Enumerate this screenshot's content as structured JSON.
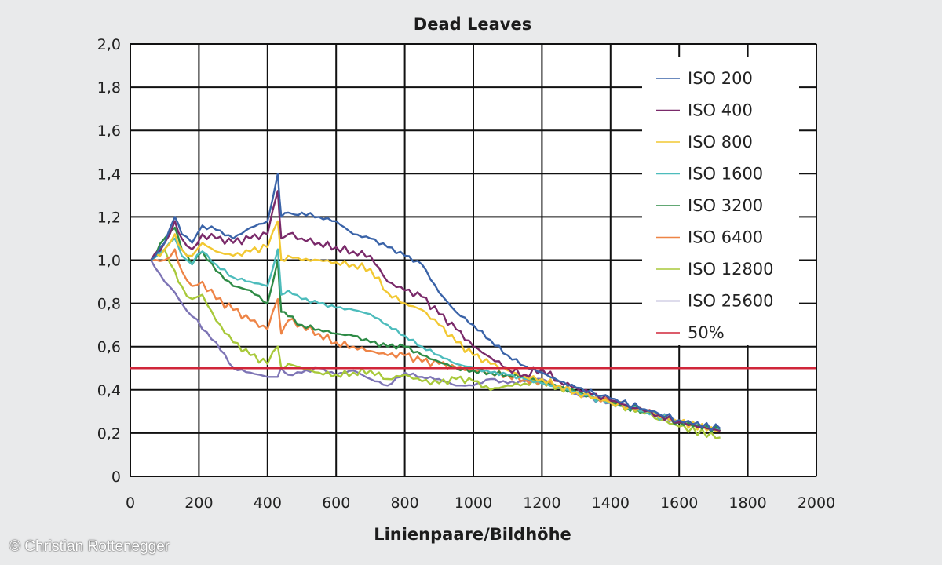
{
  "credit": "© Christian Rottenegger",
  "chart_data": {
    "type": "line",
    "title": "Dead Leaves",
    "xlabel": "Linienpaare/Bildhöhe",
    "ylabel": "",
    "xlim": [
      0,
      2000
    ],
    "ylim": [
      0,
      2.0
    ],
    "x_ticks": [
      "0",
      "200",
      "400",
      "600",
      "800",
      "1000",
      "1200",
      "1400",
      "1600",
      "1800",
      "2000"
    ],
    "y_ticks": [
      "0",
      "0,2",
      "0,4",
      "0,6",
      "0,8",
      "1,0",
      "1,2",
      "1,4",
      "1,6",
      "1,8",
      "2,0"
    ],
    "grid": true,
    "legend_position": "top-right",
    "series": [
      {
        "name": "ISO 200",
        "color": "#3a63a8",
        "x": [
          60,
          100,
          130,
          150,
          180,
          210,
          250,
          300,
          350,
          400,
          430,
          440,
          460,
          480,
          500,
          550,
          600,
          650,
          700,
          750,
          800,
          850,
          900,
          950,
          1000,
          1050,
          1100,
          1150,
          1200,
          1250,
          1300,
          1400,
          1500,
          1600,
          1720
        ],
        "y": [
          1.0,
          1.08,
          1.2,
          1.12,
          1.08,
          1.16,
          1.14,
          1.1,
          1.15,
          1.18,
          1.4,
          1.2,
          1.22,
          1.21,
          1.22,
          1.2,
          1.18,
          1.12,
          1.1,
          1.06,
          1.02,
          0.98,
          0.85,
          0.76,
          0.7,
          0.63,
          0.56,
          0.51,
          0.48,
          0.44,
          0.41,
          0.36,
          0.31,
          0.26,
          0.22
        ]
      },
      {
        "name": "ISO 400",
        "color": "#7a2a6a",
        "x": [
          60,
          100,
          130,
          150,
          180,
          210,
          250,
          300,
          350,
          400,
          430,
          440,
          460,
          500,
          550,
          600,
          650,
          700,
          750,
          800,
          850,
          900,
          950,
          1000,
          1050,
          1100,
          1150,
          1200,
          1250,
          1300,
          1400,
          1500,
          1600,
          1720
        ],
        "y": [
          1.0,
          1.08,
          1.18,
          1.1,
          1.05,
          1.12,
          1.1,
          1.08,
          1.1,
          1.12,
          1.32,
          1.1,
          1.12,
          1.1,
          1.08,
          1.06,
          1.04,
          1.02,
          0.9,
          0.86,
          0.83,
          0.75,
          0.68,
          0.6,
          0.55,
          0.5,
          0.47,
          0.5,
          0.44,
          0.41,
          0.35,
          0.3,
          0.25,
          0.21
        ]
      },
      {
        "name": "ISO 800",
        "color": "#f2c832",
        "x": [
          60,
          100,
          130,
          150,
          180,
          210,
          250,
          300,
          350,
          400,
          430,
          440,
          460,
          500,
          550,
          600,
          650,
          700,
          750,
          800,
          850,
          900,
          950,
          1000,
          1050,
          1100,
          1150,
          1200,
          1250,
          1300,
          1400,
          1500,
          1600,
          1720
        ],
        "y": [
          1.0,
          1.05,
          1.12,
          1.05,
          1.02,
          1.08,
          1.04,
          1.02,
          1.04,
          1.06,
          1.18,
          1.0,
          1.02,
          1.0,
          1.0,
          0.99,
          0.98,
          0.96,
          0.85,
          0.8,
          0.77,
          0.7,
          0.62,
          0.56,
          0.52,
          0.49,
          0.46,
          0.45,
          0.42,
          0.39,
          0.34,
          0.3,
          0.25,
          0.21
        ]
      },
      {
        "name": "ISO 1600",
        "color": "#4dbcbc",
        "x": [
          60,
          100,
          130,
          150,
          180,
          210,
          250,
          300,
          350,
          400,
          430,
          440,
          460,
          500,
          550,
          600,
          650,
          700,
          750,
          800,
          850,
          900,
          950,
          1000,
          1050,
          1100,
          1150,
          1200,
          1250,
          1300,
          1400,
          1500,
          1600,
          1720
        ],
        "y": [
          1.0,
          1.05,
          1.1,
          1.02,
          0.98,
          1.04,
          0.98,
          0.92,
          0.9,
          0.88,
          1.05,
          0.84,
          0.86,
          0.82,
          0.8,
          0.78,
          0.77,
          0.75,
          0.7,
          0.65,
          0.6,
          0.56,
          0.52,
          0.5,
          0.48,
          0.47,
          0.45,
          0.43,
          0.41,
          0.39,
          0.34,
          0.3,
          0.25,
          0.21
        ]
      },
      {
        "name": "ISO 3200",
        "color": "#2e8b46",
        "x": [
          60,
          100,
          130,
          150,
          180,
          210,
          250,
          300,
          350,
          400,
          430,
          440,
          460,
          500,
          550,
          600,
          650,
          700,
          750,
          800,
          850,
          900,
          950,
          1000,
          1050,
          1100,
          1150,
          1200,
          1250,
          1300,
          1400,
          1500,
          1600,
          1720
        ],
        "y": [
          1.0,
          1.1,
          1.15,
          1.05,
          0.98,
          1.04,
          0.95,
          0.88,
          0.86,
          0.8,
          1.0,
          0.76,
          0.74,
          0.7,
          0.68,
          0.66,
          0.65,
          0.62,
          0.6,
          0.6,
          0.56,
          0.53,
          0.5,
          0.49,
          0.48,
          0.47,
          0.46,
          0.44,
          0.41,
          0.39,
          0.34,
          0.3,
          0.25,
          0.21
        ]
      },
      {
        "name": "ISO 6400",
        "color": "#ee8446",
        "x": [
          60,
          100,
          130,
          150,
          180,
          210,
          250,
          300,
          350,
          400,
          430,
          440,
          460,
          500,
          550,
          600,
          650,
          700,
          750,
          800,
          850,
          900,
          950,
          1000,
          1050,
          1100,
          1150,
          1200,
          1250,
          1300,
          1400,
          1500,
          1600,
          1720
        ],
        "y": [
          1.0,
          1.0,
          1.05,
          0.95,
          0.88,
          0.9,
          0.82,
          0.77,
          0.72,
          0.68,
          0.82,
          0.66,
          0.72,
          0.7,
          0.66,
          0.62,
          0.6,
          0.58,
          0.56,
          0.56,
          0.53,
          0.52,
          0.5,
          0.49,
          0.48,
          0.47,
          0.45,
          0.44,
          0.42,
          0.39,
          0.34,
          0.3,
          0.25,
          0.21
        ]
      },
      {
        "name": "ISO 12800",
        "color": "#a8c93a",
        "x": [
          60,
          100,
          130,
          150,
          180,
          210,
          250,
          300,
          350,
          400,
          430,
          440,
          460,
          500,
          550,
          600,
          650,
          700,
          750,
          800,
          850,
          900,
          950,
          1000,
          1050,
          1100,
          1150,
          1200,
          1250,
          1300,
          1400,
          1500,
          1600,
          1720
        ],
        "y": [
          1.0,
          1.05,
          0.95,
          0.88,
          0.82,
          0.84,
          0.72,
          0.62,
          0.56,
          0.52,
          0.6,
          0.5,
          0.52,
          0.5,
          0.48,
          0.47,
          0.48,
          0.49,
          0.45,
          0.47,
          0.44,
          0.43,
          0.45,
          0.44,
          0.4,
          0.42,
          0.43,
          0.44,
          0.41,
          0.39,
          0.34,
          0.29,
          0.23,
          0.18
        ]
      },
      {
        "name": "ISO 25600",
        "color": "#7d74b5",
        "x": [
          60,
          100,
          130,
          150,
          180,
          210,
          250,
          300,
          350,
          400,
          430,
          440,
          460,
          500,
          550,
          600,
          650,
          700,
          750,
          800,
          850,
          900,
          950,
          1000,
          1050,
          1100,
          1150,
          1200,
          1250,
          1300,
          1400,
          1500,
          1600,
          1720
        ],
        "y": [
          1.0,
          0.9,
          0.85,
          0.8,
          0.74,
          0.68,
          0.62,
          0.5,
          0.48,
          0.46,
          0.46,
          0.5,
          0.47,
          0.48,
          0.5,
          0.47,
          0.49,
          0.45,
          0.42,
          0.48,
          0.46,
          0.45,
          0.42,
          0.42,
          0.45,
          0.43,
          0.44,
          0.45,
          0.41,
          0.38,
          0.34,
          0.3,
          0.25,
          0.21
        ]
      },
      {
        "name": "50%",
        "color": "#d0263a",
        "x": [
          0,
          2000
        ],
        "y": [
          0.5,
          0.5
        ]
      }
    ]
  }
}
